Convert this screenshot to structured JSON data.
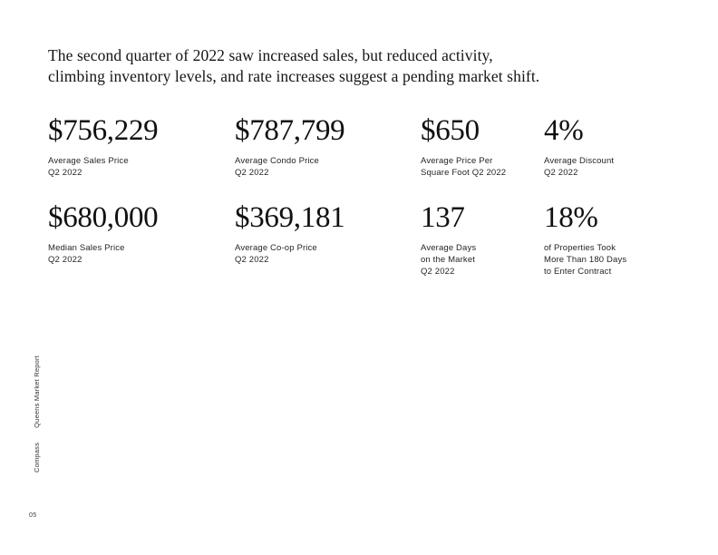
{
  "headline": "The second quarter of 2022 saw increased sales, but reduced activity,\nclimbing inventory levels, and rate increases suggest a pending market shift.",
  "stats": {
    "row1": [
      {
        "value": "$756,229",
        "label": "Average Sales Price\nQ2 2022"
      },
      {
        "value": "$787,799",
        "label": "Average Condo Price\nQ2 2022"
      },
      {
        "value": "$650",
        "label": "Average Price Per\nSquare Foot Q2 2022"
      },
      {
        "value": "4%",
        "label": "Average Discount\nQ2 2022"
      }
    ],
    "row2": [
      {
        "value": "$680,000",
        "label": "Median Sales Price\nQ2 2022"
      },
      {
        "value": "$369,181",
        "label": "Average Co-op Price\nQ2 2022"
      },
      {
        "value": "137",
        "label": "Average Days\non the Market\nQ2 2022"
      },
      {
        "value": "18%",
        "label": "of Properties Took\nMore Than 180 Days\nto Enter Contract"
      }
    ]
  },
  "sidebar": {
    "brand": "Compass",
    "report_title": "Queens Market Report"
  },
  "footer": {
    "page_number": "05"
  },
  "colors": {
    "background": "#ffffff",
    "text_primary": "#111111",
    "text_secondary": "#262626"
  }
}
